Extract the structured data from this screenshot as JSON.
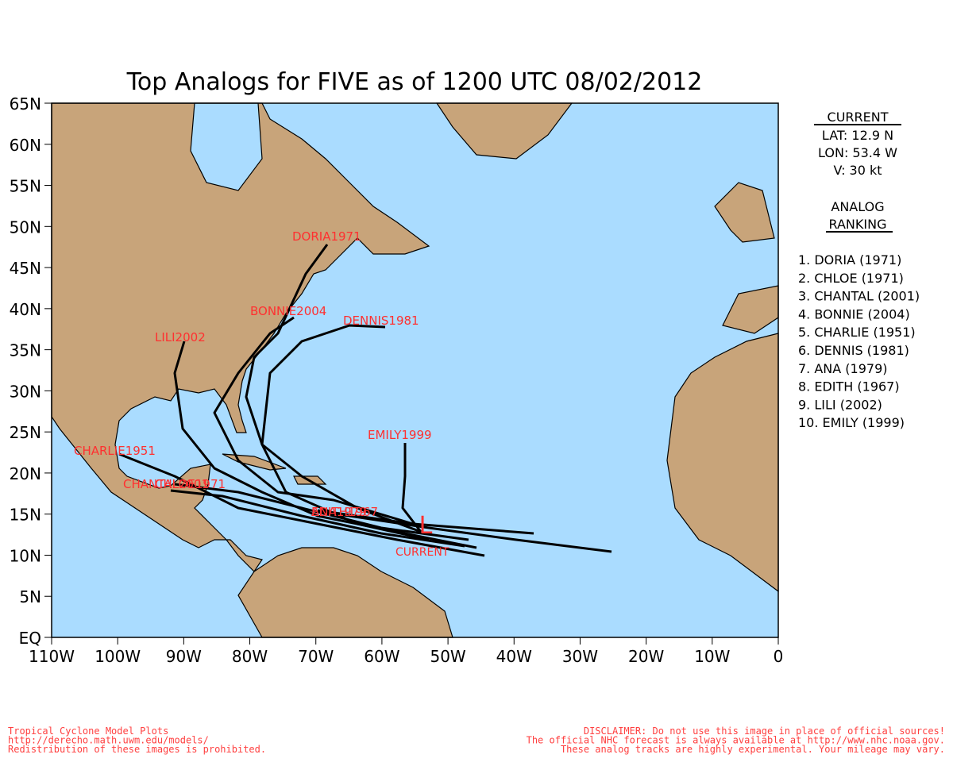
{
  "title": "Top Analogs for FIVE as of 1200 UTC 08/02/2012",
  "map": {
    "lat_labels": [
      "65N",
      "60N",
      "55N",
      "50N",
      "45N",
      "40N",
      "35N",
      "30N",
      "25N",
      "20N",
      "15N",
      "10N",
      "5N",
      "EQ"
    ],
    "lon_labels": [
      "110W",
      "100W",
      "90W",
      "80W",
      "70W",
      "60W",
      "50W",
      "40W",
      "30W",
      "20W",
      "10W",
      "0"
    ],
    "track_labels": [
      "DORIA1971",
      "BONNIE2004",
      "DENNIS1981",
      "LILI2002",
      "CHARLIE1951",
      "CHANTAL2001",
      "CHLOE1971",
      "EDITH1967",
      "ANA1979",
      "EMILY1999"
    ],
    "current_marker": "L",
    "current_label": "CURRENT"
  },
  "current": {
    "heading": "CURRENT",
    "lat": "LAT: 12.9 N",
    "lon": "LON: 53.4 W",
    "v": "V: 30 kt"
  },
  "analog": {
    "heading": [
      "ANALOG",
      "RANKING"
    ],
    "items": [
      "1. DORIA (1971)",
      "2. CHLOE (1971)",
      "3. CHANTAL (2001)",
      "4. BONNIE (2004)",
      "5. CHARLIE (1951)",
      "6. DENNIS (1981)",
      "7. ANA (1979)",
      "8. EDITH (1967)",
      "9. LILI (2002)",
      "10. EMILY (1999)"
    ]
  },
  "footer": {
    "left": [
      "Tropical Cyclone Model Plots",
      "http://derecho.math.uwm.edu/models/",
      "Redistribution of these images is prohibited."
    ],
    "right": [
      "DISCLAIMER: Do not use this image in place of official sources!",
      "The official NHC forecast is always available at http://www.nhc.noaa.gov.",
      "These analog tracks are highly experimental. Your mileage may vary."
    ]
  }
}
